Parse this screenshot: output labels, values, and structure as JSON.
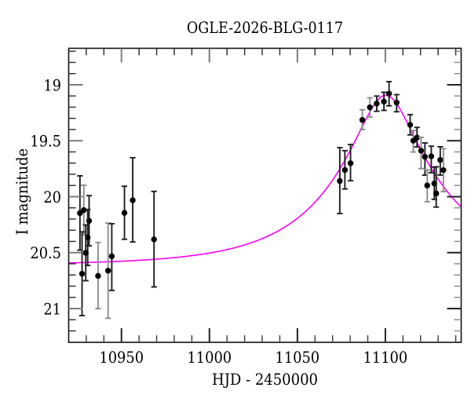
{
  "chart_data": {
    "type": "scatter",
    "title": "OGLE-2026-BLG-0117",
    "xlabel": "HJD - 2450000",
    "ylabel": "I magnitude",
    "x_range": [
      10920.0,
      11143.1
    ],
    "y_range_top_to_bottom": [
      18.674,
      21.302
    ],
    "y_axis_inverted": true,
    "grid": false,
    "x_ticks_major": [
      10950,
      11000,
      11050,
      11100
    ],
    "x_tick_labels": [
      "10950",
      "11000",
      "11050",
      "11100"
    ],
    "x_minor_step": 10,
    "y_ticks_major": [
      19.0,
      19.5,
      20.0,
      20.5,
      21.0
    ],
    "y_tick_labels": [
      "19",
      "19.5",
      "20",
      "20.5",
      "21"
    ],
    "y_minor_step": 0.1,
    "points": [
      {
        "t": 10926.4,
        "mag": 20.147,
        "err_up": 0.333,
        "err_down": 0.331,
        "shade": "dark"
      },
      {
        "t": 10928.6,
        "mag": 20.12,
        "err_up": 0.222,
        "err_down": 0.222,
        "shade": "light"
      },
      {
        "t": 10931.6,
        "mag": 20.216,
        "err_up": 0.225,
        "err_down": 0.224,
        "shade": "dark"
      },
      {
        "t": 10930.8,
        "mag": 20.365,
        "err_up": 0.251,
        "err_down": 0.25,
        "shade": "dark"
      },
      {
        "t": 10929.7,
        "mag": 20.502,
        "err_up": 0.249,
        "err_down": 0.249,
        "shade": "dark"
      },
      {
        "t": 10927.6,
        "mag": 20.689,
        "err_up": 0.374,
        "err_down": 0.374,
        "shade": "dark"
      },
      {
        "t": 10936.7,
        "mag": 20.708,
        "err_up": 0.298,
        "err_down": 0.292,
        "shade": "light"
      },
      {
        "t": 10942.4,
        "mag": 20.662,
        "err_up": 0.426,
        "err_down": 0.425,
        "shade": "light"
      },
      {
        "t": 10944.5,
        "mag": 20.533,
        "err_up": 0.291,
        "err_down": 0.305,
        "shade": "dark"
      },
      {
        "t": 10951.7,
        "mag": 20.145,
        "err_up": 0.238,
        "err_down": 0.236,
        "shade": "dark"
      },
      {
        "t": 10956.4,
        "mag": 20.032,
        "err_up": 0.38,
        "err_down": 0.373,
        "shade": "dark"
      },
      {
        "t": 10968.5,
        "mag": 20.382,
        "err_up": 0.429,
        "err_down": 0.425,
        "shade": "dark"
      },
      {
        "t": 11074.1,
        "mag": 19.86,
        "err_up": 0.298,
        "err_down": 0.291,
        "shade": "dark"
      },
      {
        "t": 11077.0,
        "mag": 19.762,
        "err_up": 0.173,
        "err_down": 0.169,
        "shade": "dark"
      },
      {
        "t": 11080.2,
        "mag": 19.701,
        "err_up": 0.167,
        "err_down": 0.157,
        "shade": "dark"
      },
      {
        "t": 11086.9,
        "mag": 19.314,
        "err_up": 0.091,
        "err_down": 0.086,
        "shade": "light"
      },
      {
        "t": 11091.2,
        "mag": 19.202,
        "err_up": 0.086,
        "err_down": 0.086,
        "shade": "light"
      },
      {
        "t": 11095.1,
        "mag": 19.168,
        "err_up": 0.067,
        "err_down": 0.069,
        "shade": "dark"
      },
      {
        "t": 11099.2,
        "mag": 19.15,
        "err_up": 0.083,
        "err_down": 0.079,
        "shade": "dark"
      },
      {
        "t": 11102.1,
        "mag": 19.079,
        "err_up": 0.107,
        "err_down": 0.109,
        "shade": "dark"
      },
      {
        "t": 11106.4,
        "mag": 19.159,
        "err_up": 0.071,
        "err_down": 0.082,
        "shade": "dark"
      },
      {
        "t": 11114.1,
        "mag": 19.358,
        "err_up": 0.091,
        "err_down": 0.09,
        "shade": "dark"
      },
      {
        "t": 11115.9,
        "mag": 19.5,
        "err_up": 0.091,
        "err_down": 0.101,
        "shade": "light"
      },
      {
        "t": 11118.0,
        "mag": 19.472,
        "err_up": 0.091,
        "err_down": 0.084,
        "shade": "dark"
      },
      {
        "t": 11120.3,
        "mag": 19.589,
        "err_up": 0.119,
        "err_down": 0.16,
        "shade": "light"
      },
      {
        "t": 11122.5,
        "mag": 19.644,
        "err_up": 0.124,
        "err_down": 0.164,
        "shade": "dark"
      },
      {
        "t": 11126.1,
        "mag": 19.639,
        "err_up": 0.09,
        "err_down": 0.147,
        "shade": "dark"
      },
      {
        "t": 11123.8,
        "mag": 19.9,
        "err_up": 0.139,
        "err_down": 0.145,
        "shade": "light"
      },
      {
        "t": 11127.8,
        "mag": 19.882,
        "err_up": 0.146,
        "err_down": 0.142,
        "shade": "dark"
      },
      {
        "t": 11128.9,
        "mag": 19.971,
        "err_up": 0.238,
        "err_down": 0.122,
        "shade": "dark"
      },
      {
        "t": 11131.2,
        "mag": 19.672,
        "err_up": 0.118,
        "err_down": 0.135,
        "shade": "dark"
      },
      {
        "t": 11133.0,
        "mag": 19.763,
        "err_up": 0.192,
        "err_down": 0.192,
        "shade": "light"
      }
    ],
    "model_curve": {
      "type": "paczynski-microlensing",
      "baseline_mag": 20.612,
      "t0": 11100.2,
      "tE": 61.6,
      "u0": 0.253,
      "peak_mag": 19.096
    },
    "colors": {
      "curve": "#fb00fb",
      "point": "#000000",
      "errorbar_dark": "#1f1f1f",
      "errorbar_light": "#8d8d8d",
      "axis": "#111111",
      "text": "#000000",
      "background": "#ffffff"
    }
  }
}
